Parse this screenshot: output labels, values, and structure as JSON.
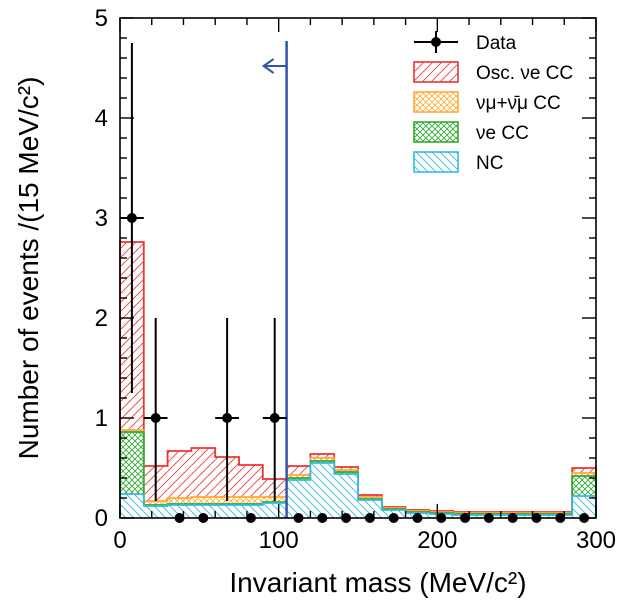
{
  "chart_data": {
    "type": "bar",
    "xlabel": "Invariant mass (MeV/c²)",
    "ylabel": "Number of events /(15 MeV/c²)",
    "xlim": [
      0,
      300
    ],
    "ylim": [
      0,
      5
    ],
    "x_ticks": [
      0,
      100,
      200,
      300
    ],
    "y_ticks": [
      0,
      1,
      2,
      3,
      4,
      5
    ],
    "grid": false,
    "legend_position": "top-right",
    "bin_width": 15,
    "bin_edges": [
      0,
      15,
      30,
      45,
      60,
      75,
      90,
      105,
      120,
      135,
      150,
      165,
      180,
      195,
      210,
      225,
      240,
      255,
      270,
      285,
      300
    ],
    "series": [
      {
        "name": "NC",
        "color": "#33bbdd",
        "hatch": "diagonal-down",
        "values": [
          0.24,
          0.12,
          0.13,
          0.13,
          0.13,
          0.13,
          0.15,
          0.38,
          0.55,
          0.44,
          0.18,
          0.08,
          0.05,
          0.04,
          0.03,
          0.03,
          0.03,
          0.03,
          0.03,
          0.22
        ]
      },
      {
        "name": "νe CC",
        "color": "#33aa33",
        "hatch": "crosshatch",
        "values": [
          0.62,
          0.01,
          0.01,
          0.01,
          0.01,
          0.01,
          0.01,
          0.02,
          0.02,
          0.02,
          0.01,
          0.01,
          0.01,
          0.01,
          0.01,
          0.01,
          0.01,
          0.01,
          0.01,
          0.2
        ]
      },
      {
        "name": "νμ+ν̄μ CC",
        "color": "#ffaa33",
        "hatch": "crosshatch",
        "values": [
          0.02,
          0.04,
          0.06,
          0.07,
          0.07,
          0.07,
          0.05,
          0.03,
          0.03,
          0.02,
          0.02,
          0.01,
          0.01,
          0.01,
          0.01,
          0.01,
          0.01,
          0.01,
          0.01,
          0.03
        ]
      },
      {
        "name": "Osc. νe CC",
        "color": "#ee3333",
        "hatch": "diagonal-up",
        "values": [
          1.88,
          0.35,
          0.47,
          0.49,
          0.4,
          0.32,
          0.18,
          0.09,
          0.04,
          0.03,
          0.02,
          0.01,
          0.01,
          0.01,
          0.01,
          0.01,
          0.01,
          0.01,
          0.01,
          0.05
        ]
      }
    ],
    "data_points": {
      "name": "Data",
      "x": [
        7.5,
        22.5,
        37.5,
        52.5,
        67.5,
        82.5,
        97.5,
        112.5,
        127.5,
        142.5,
        157.5,
        172.5,
        187.5,
        202.5,
        217.5,
        232.5,
        247.5,
        262.5,
        277.5,
        292.5
      ],
      "y": [
        3,
        1,
        0,
        0,
        1,
        0,
        1,
        0,
        0,
        0,
        0,
        0,
        0,
        0,
        0,
        0,
        0,
        0,
        0,
        0
      ],
      "err_low": [
        1.75,
        0.83,
        0,
        0,
        0.83,
        0,
        0.83,
        0,
        0,
        0,
        0,
        0,
        0,
        0,
        0,
        0,
        0,
        0,
        0,
        0
      ],
      "err_high": [
        1.75,
        1.0,
        0,
        0,
        1.0,
        0,
        1.0,
        0,
        0,
        0,
        0,
        0,
        0,
        0,
        0,
        0,
        0,
        0,
        0,
        0
      ]
    },
    "cut": {
      "x": 105,
      "direction": "left",
      "color": "#3355aa"
    }
  }
}
